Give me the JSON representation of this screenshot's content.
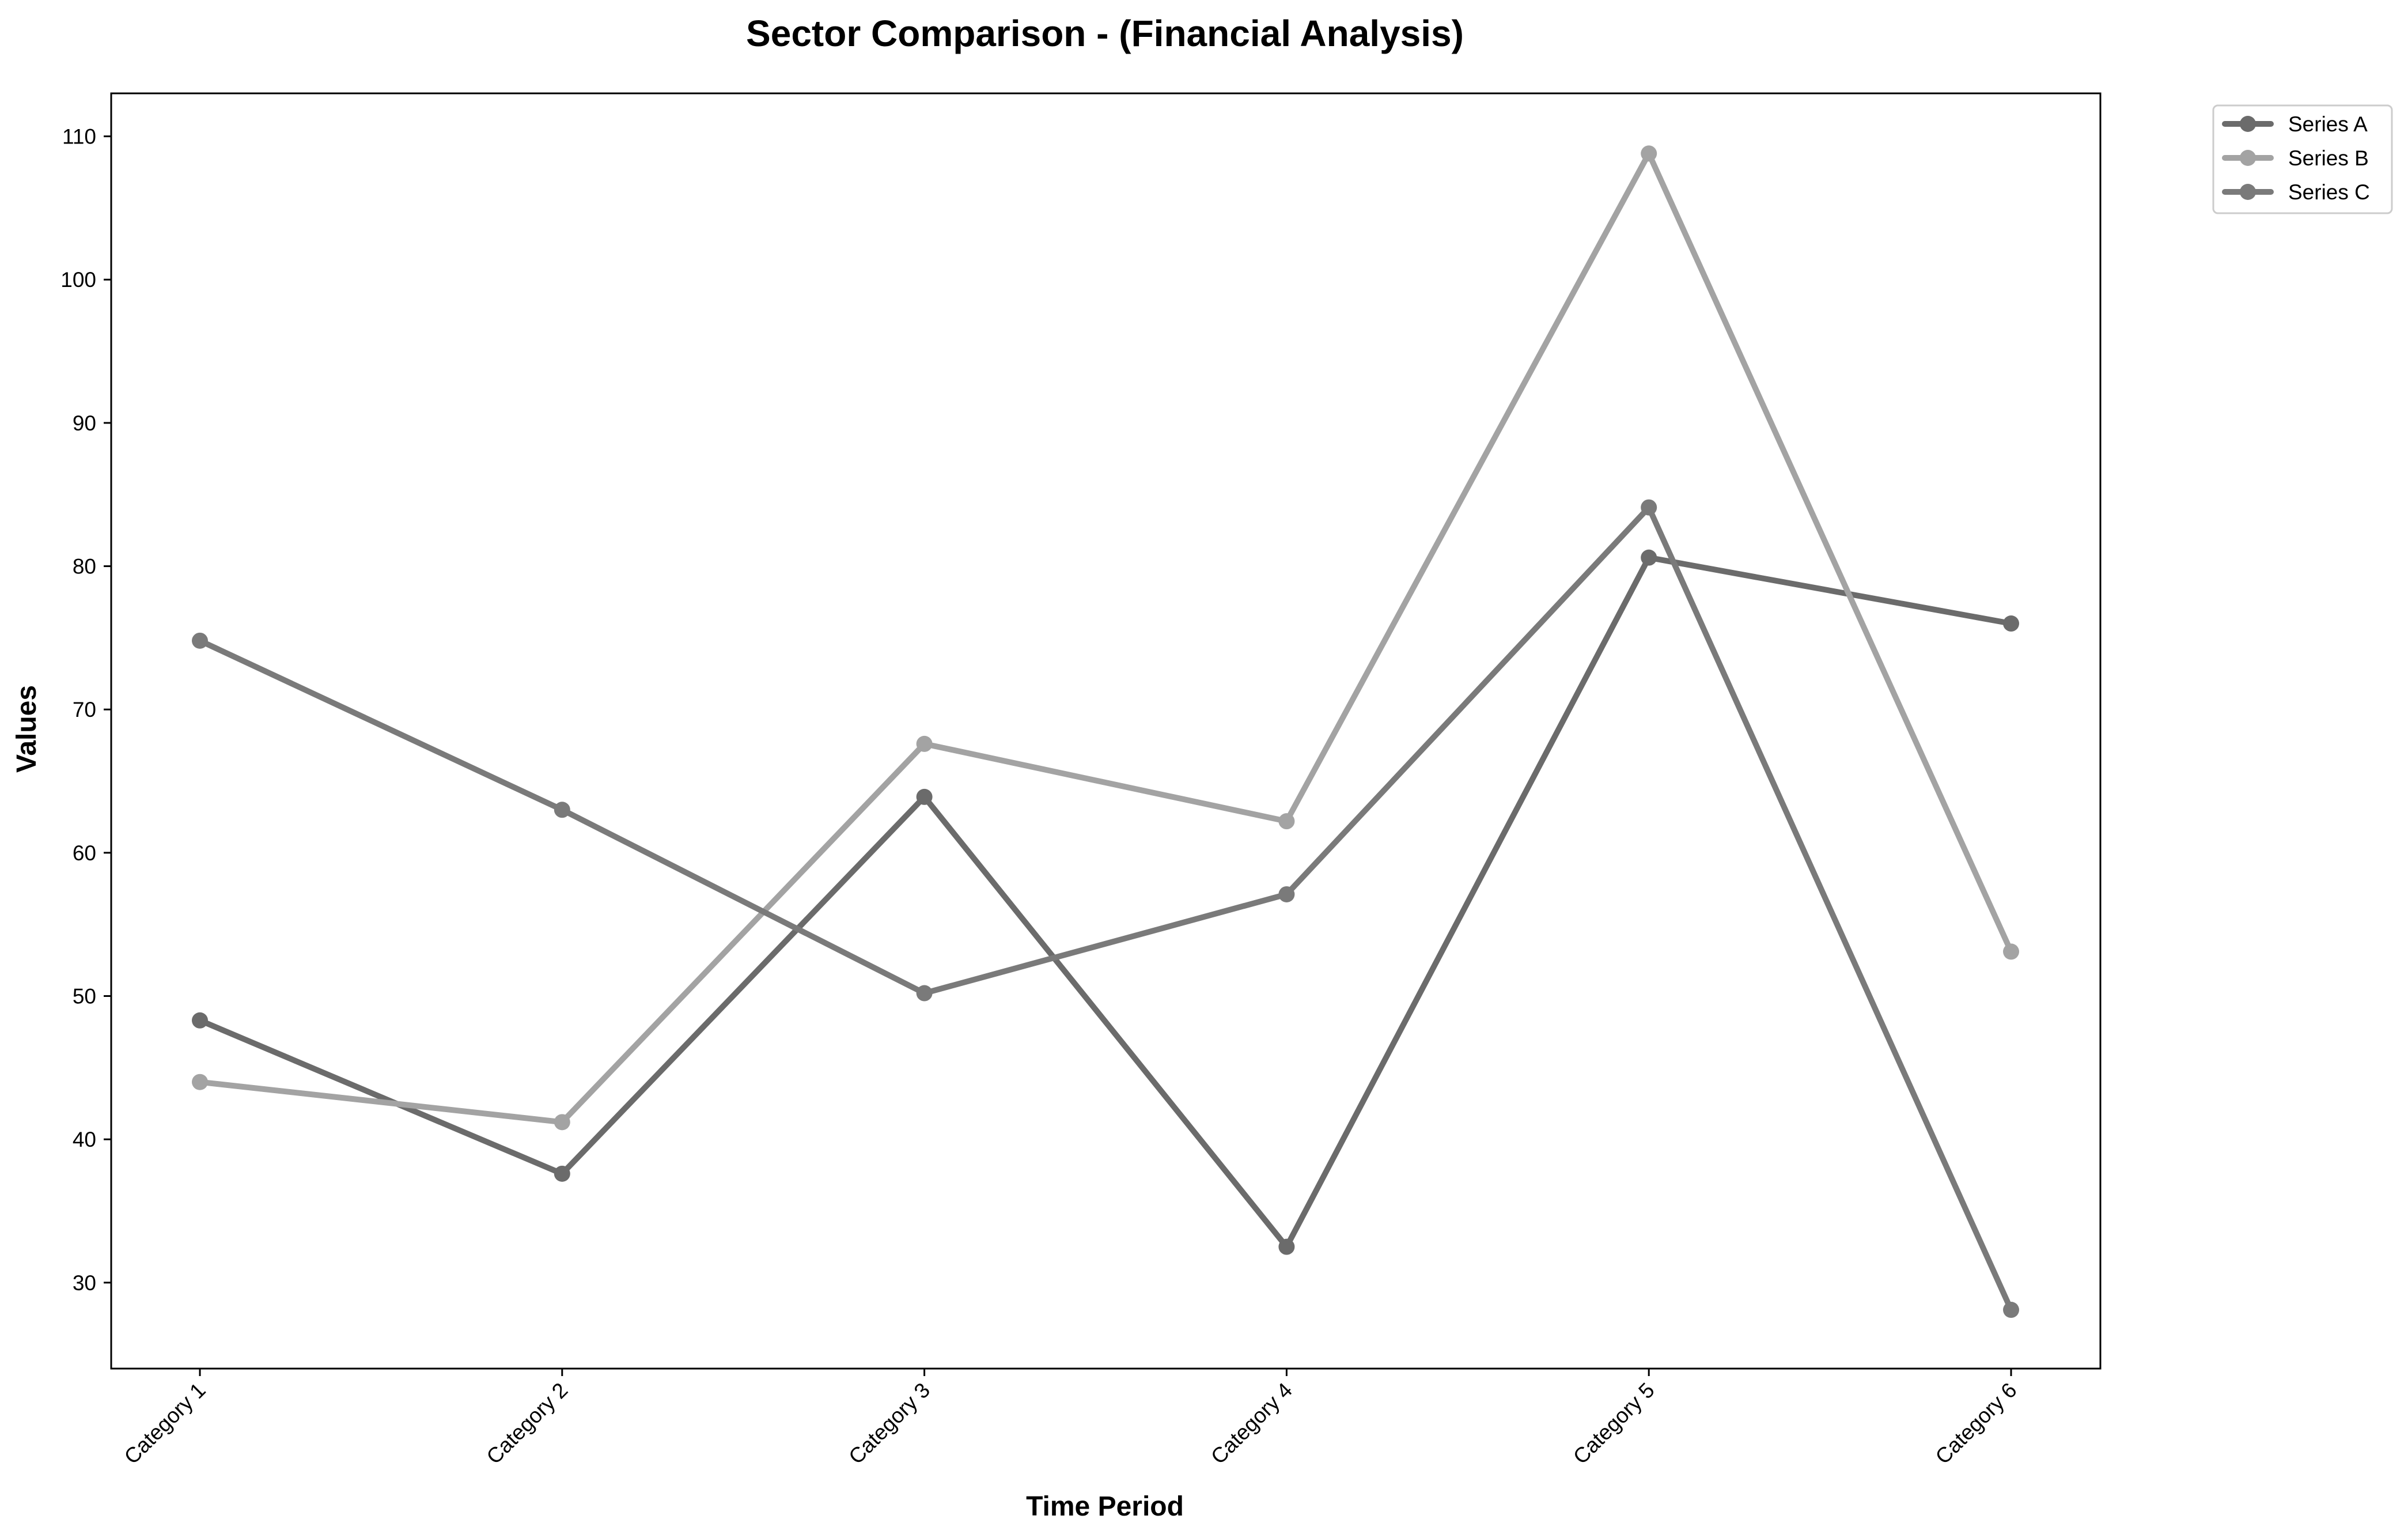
{
  "chart_data": {
    "type": "line",
    "title": "Sector Comparison - (Financial Analysis)",
    "xlabel": "Time Period",
    "ylabel": "Values",
    "categories": [
      "Category 1",
      "Category 2",
      "Category 3",
      "Category 4",
      "Category 5",
      "Category 6"
    ],
    "ylim": [
      24,
      113
    ],
    "yticks": [
      30,
      40,
      50,
      60,
      70,
      80,
      90,
      100,
      110
    ],
    "grid": false,
    "legend_position": "outside-top-right",
    "series": [
      {
        "name": "Series A",
        "color": "#6b6b6b",
        "values": [
          48.3,
          37.6,
          63.9,
          32.5,
          80.6,
          76.0
        ]
      },
      {
        "name": "Series B",
        "color": "#a3a3a3",
        "values": [
          44.0,
          41.2,
          67.6,
          62.2,
          108.8,
          53.1
        ]
      },
      {
        "name": "Series C",
        "color": "#7a7a7a",
        "values": [
          74.8,
          63.0,
          50.2,
          57.1,
          84.1,
          28.1
        ]
      }
    ]
  }
}
